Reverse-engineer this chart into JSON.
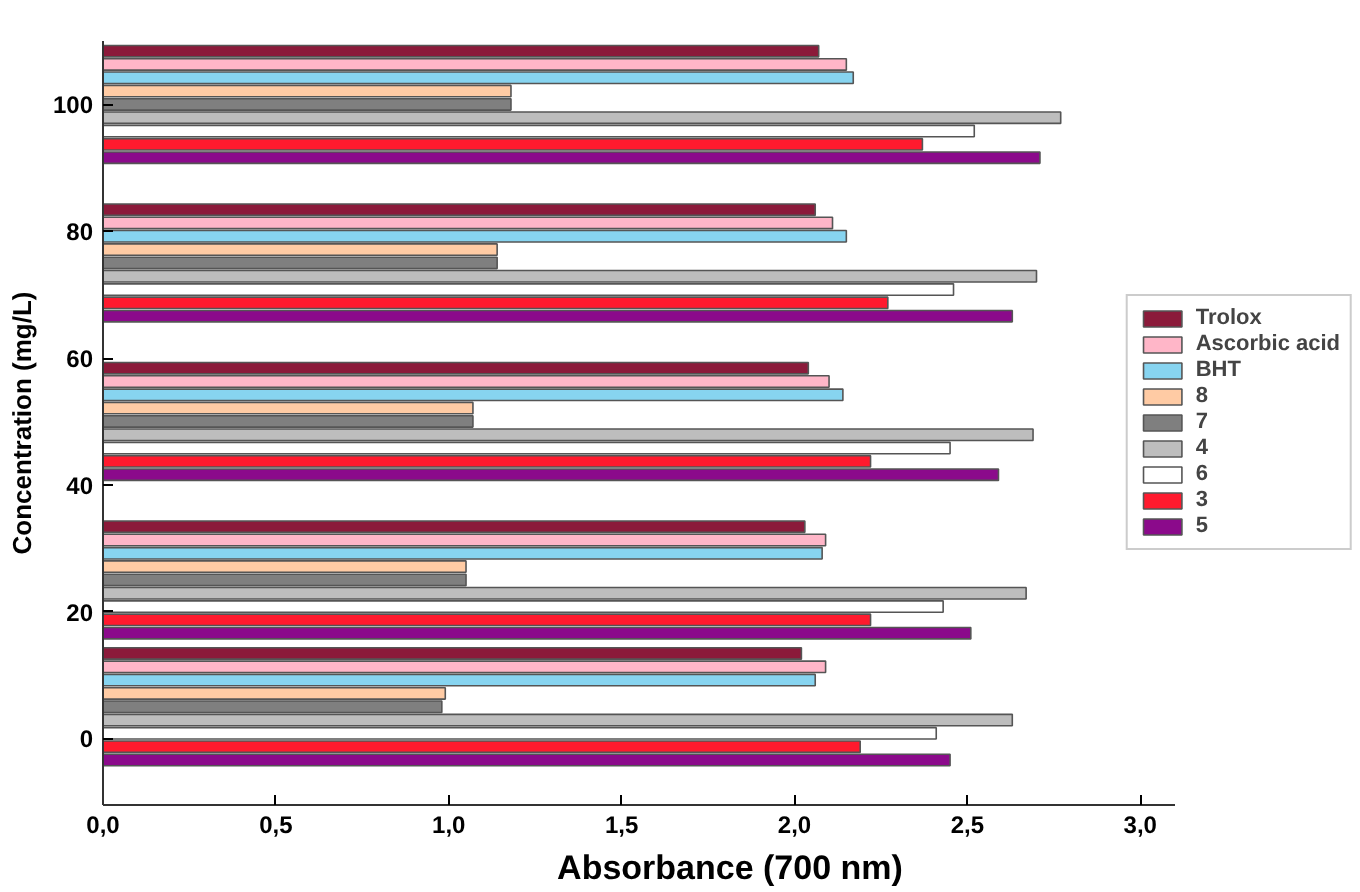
{
  "chart_data": {
    "type": "bar",
    "orientation": "horizontal",
    "xlabel": "Absorbance (700 nm)",
    "ylabel": "Concentration (mg/L)",
    "x": [
      5,
      25,
      50,
      75,
      100
    ],
    "series": [
      {
        "name": "Trolox",
        "color": "#8b1a3a",
        "values": [
          2.02,
          2.03,
          2.04,
          2.06,
          2.07
        ]
      },
      {
        "name": "Ascorbic acid",
        "color": "#ffb6c8",
        "values": [
          2.09,
          2.09,
          2.1,
          2.11,
          2.15
        ]
      },
      {
        "name": "BHT",
        "color": "#87d4f0",
        "values": [
          2.06,
          2.08,
          2.14,
          2.15,
          2.17
        ]
      },
      {
        "name": "8",
        "color": "#ffcba4",
        "values": [
          0.99,
          1.05,
          1.07,
          1.14,
          1.18
        ]
      },
      {
        "name": "7",
        "color": "#7f7f7f",
        "values": [
          0.98,
          1.05,
          1.07,
          1.14,
          1.18
        ]
      },
      {
        "name": "4",
        "color": "#bdbdbd",
        "values": [
          2.63,
          2.67,
          2.69,
          2.7,
          2.77
        ]
      },
      {
        "name": "6",
        "color": "#ffffff",
        "values": [
          2.41,
          2.43,
          2.45,
          2.46,
          2.52
        ]
      },
      {
        "name": "3",
        "color": "#ff1a2e",
        "values": [
          2.19,
          2.22,
          2.22,
          2.27,
          2.37
        ]
      },
      {
        "name": "5",
        "color": "#8b0a8b",
        "values": [
          2.45,
          2.51,
          2.59,
          2.63,
          2.71
        ]
      }
    ],
    "xlim": [
      0,
      3.1
    ],
    "xticks": [
      {
        "value": 0,
        "label": "0,0"
      },
      {
        "value": 0.5,
        "label": "0,5"
      },
      {
        "value": 1,
        "label": "1,0"
      },
      {
        "value": 1.5,
        "label": "1,5"
      },
      {
        "value": 2,
        "label": "2,0"
      },
      {
        "value": 2.5,
        "label": "2,5"
      },
      {
        "value": 3,
        "label": "3,0"
      }
    ],
    "ylim": [
      -10.5,
      110
    ],
    "yticks": [
      0,
      20,
      40,
      60,
      80,
      100
    ],
    "grid": false,
    "legend": "right"
  }
}
